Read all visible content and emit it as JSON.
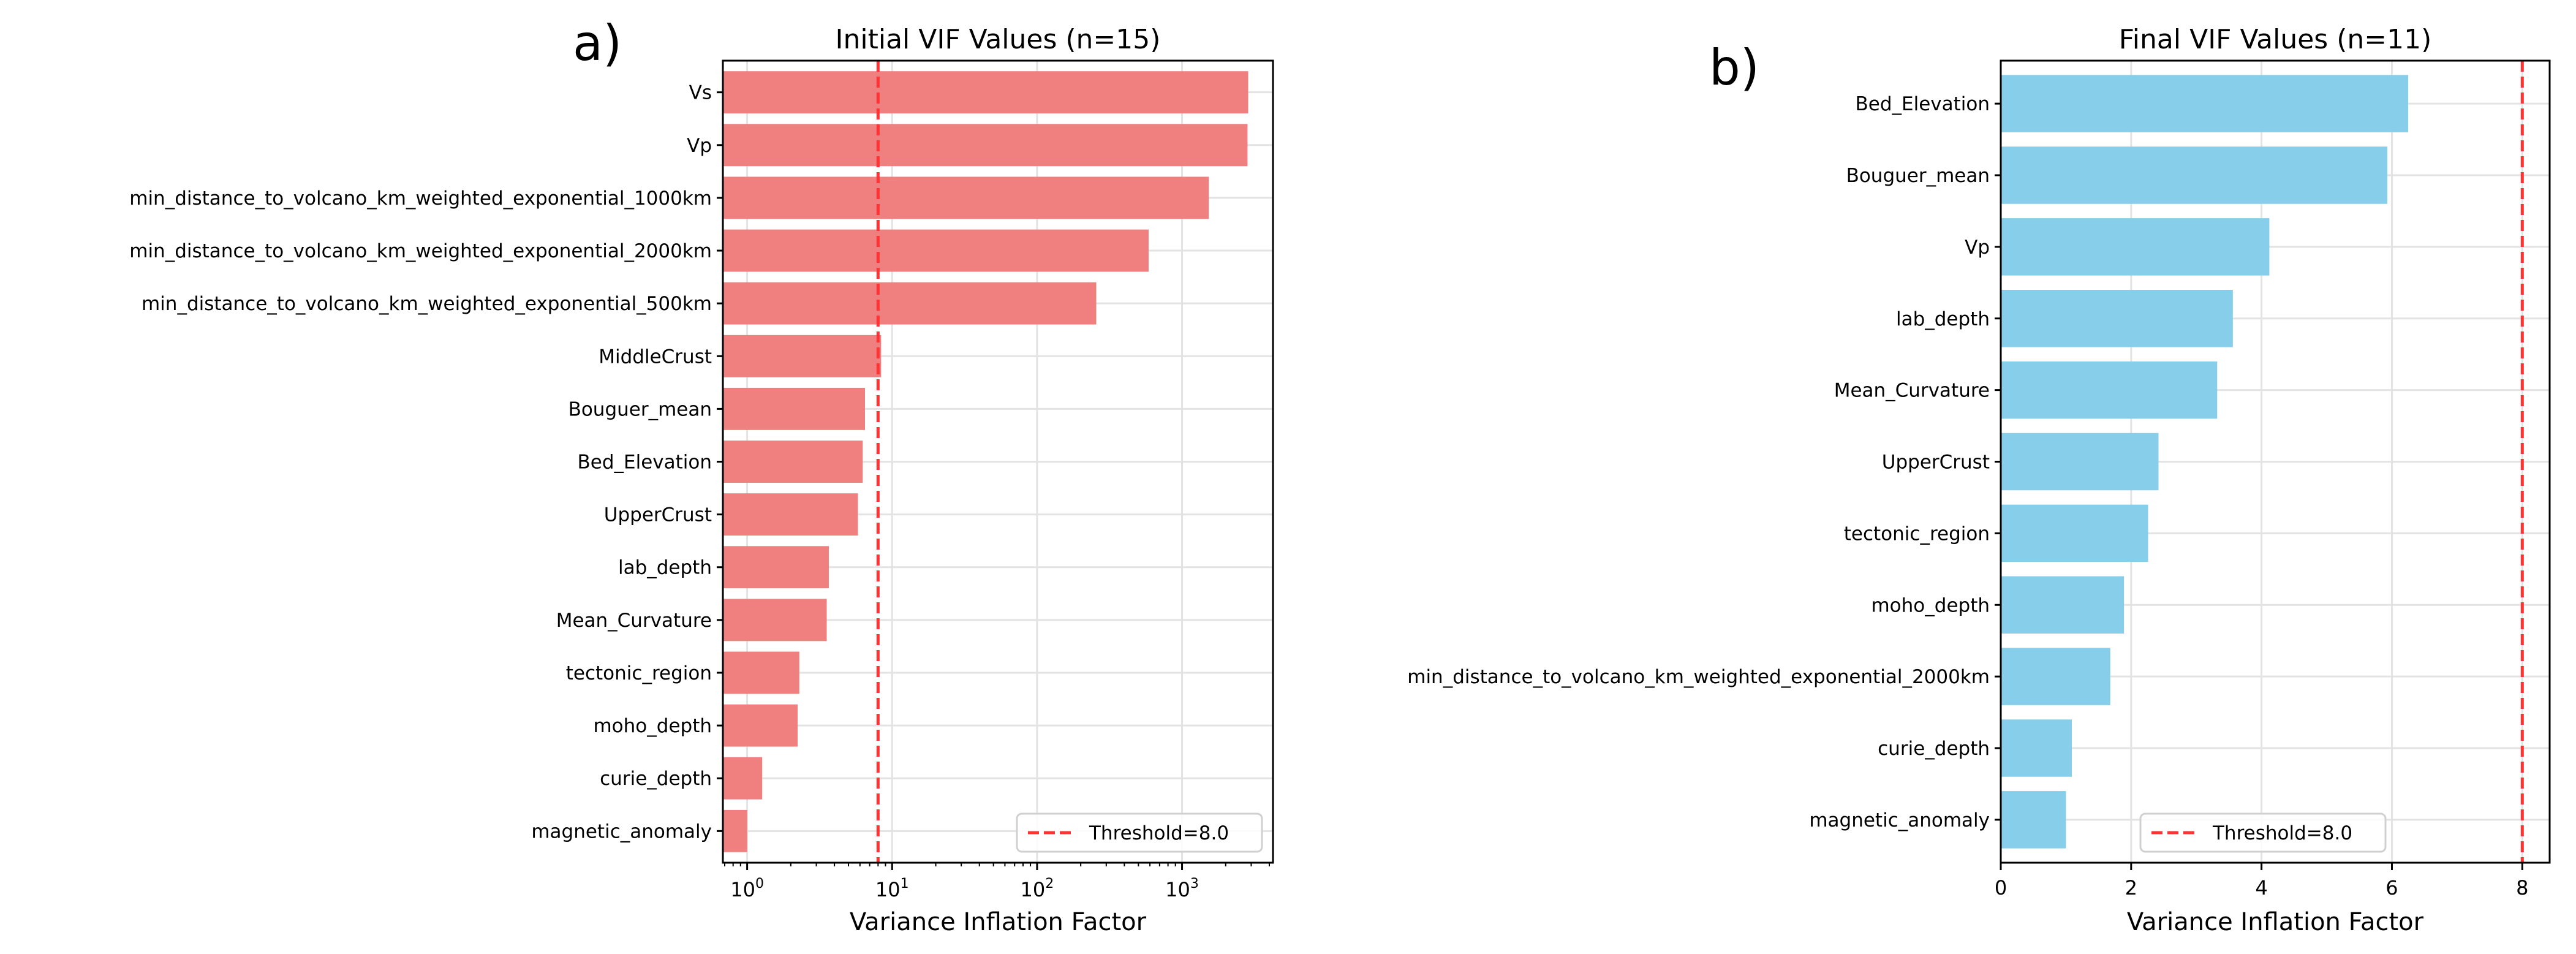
{
  "panel_labels": [
    "a)",
    "b)"
  ],
  "chart_data": [
    {
      "type": "bar",
      "orientation": "horizontal",
      "title": "Initial VIF Values (n=15)",
      "xlabel": "Variance Inflation Factor",
      "ylabel": "",
      "xscale": "log",
      "xlim": [
        0.68,
        4240
      ],
      "xticks": [
        1,
        10,
        100,
        1000
      ],
      "xtick_labels": [
        "10^0",
        "10^1",
        "10^2",
        "10^3"
      ],
      "grid": true,
      "bar_color": "#F08080",
      "categories": [
        "Vs",
        "Vp",
        "min_distance_to_volcano_km_weighted_exponential_1000km",
        "min_distance_to_volcano_km_weighted_exponential_2000km",
        "min_distance_to_volcano_km_weighted_exponential_500km",
        "MiddleCrust",
        "Bouguer_mean",
        "Bed_Elevation",
        "UpperCrust",
        "lab_depth",
        "Mean_Curvature",
        "tectonic_region",
        "moho_depth",
        "curie_depth",
        "magnetic_anomaly"
      ],
      "values": [
        2860,
        2830,
        1530,
        588,
        256,
        8.4,
        6.5,
        6.27,
        5.81,
        3.66,
        3.54,
        2.29,
        2.23,
        1.27,
        1.0
      ],
      "threshold": 8.0,
      "threshold_color": "#FF3333",
      "legend": {
        "label": "Threshold=8.0",
        "placement": "lower-right"
      }
    },
    {
      "type": "bar",
      "orientation": "horizontal",
      "title": "Final VIF Values (n=11)",
      "xlabel": "Variance Inflation Factor",
      "ylabel": "",
      "xscale": "linear",
      "xlim": [
        0,
        8.42
      ],
      "xticks": [
        0,
        2,
        4,
        6,
        8
      ],
      "xtick_labels": [
        "0",
        "2",
        "4",
        "6",
        "8"
      ],
      "grid": true,
      "bar_color": "#87CEEB",
      "categories": [
        "Bed_Elevation",
        "Bouguer_mean",
        "Vp",
        "lab_depth",
        "Mean_Curvature",
        "UpperCrust",
        "tectonic_region",
        "moho_depth",
        "min_distance_to_volcano_km_weighted_exponential_2000km",
        "curie_depth",
        "magnetic_anomaly"
      ],
      "values": [
        6.25,
        5.93,
        4.12,
        3.56,
        3.32,
        2.42,
        2.26,
        1.89,
        1.68,
        1.09,
        1.0
      ],
      "threshold": 8.0,
      "threshold_color": "#FF3333",
      "legend": {
        "label": "Threshold=8.0",
        "placement": "lower-center"
      }
    }
  ]
}
